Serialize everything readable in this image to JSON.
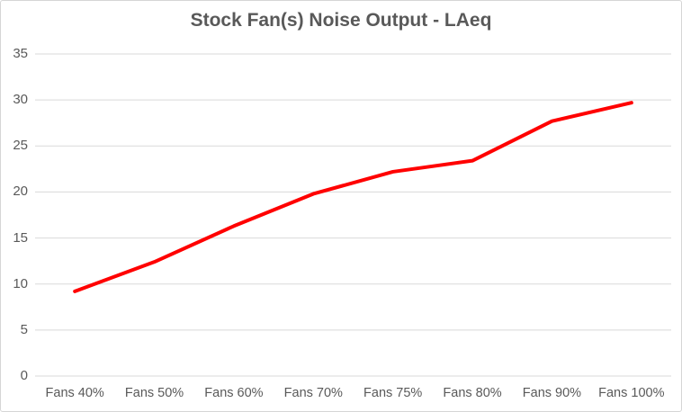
{
  "title": "Stock Fan(s) Noise Output - LAeq",
  "chart_data": {
    "type": "line",
    "title": "Stock Fan(s) Noise Output - LAeq",
    "categories": [
      "Fans 40%",
      "Fans 50%",
      "Fans 60%",
      "Fans 70%",
      "Fans 75%",
      "Fans 80%",
      "Fans 90%",
      "Fans 100%"
    ],
    "series": [
      {
        "name": "LAeq",
        "values": [
          9.2,
          12.4,
          16.3,
          19.8,
          22.2,
          23.4,
          27.7,
          29.7
        ],
        "color": "#FF0000"
      }
    ],
    "xlabel": "",
    "ylabel": "",
    "ylim": [
      0,
      35
    ],
    "y_ticks": [
      0,
      5,
      10,
      15,
      20,
      25,
      30,
      35
    ],
    "grid": true,
    "legend": false,
    "colors": {
      "grid": "#D9D9D9",
      "text": "#595959",
      "title": "#595959",
      "background": "#FFFFFF",
      "border": "#D6D6D6"
    }
  }
}
